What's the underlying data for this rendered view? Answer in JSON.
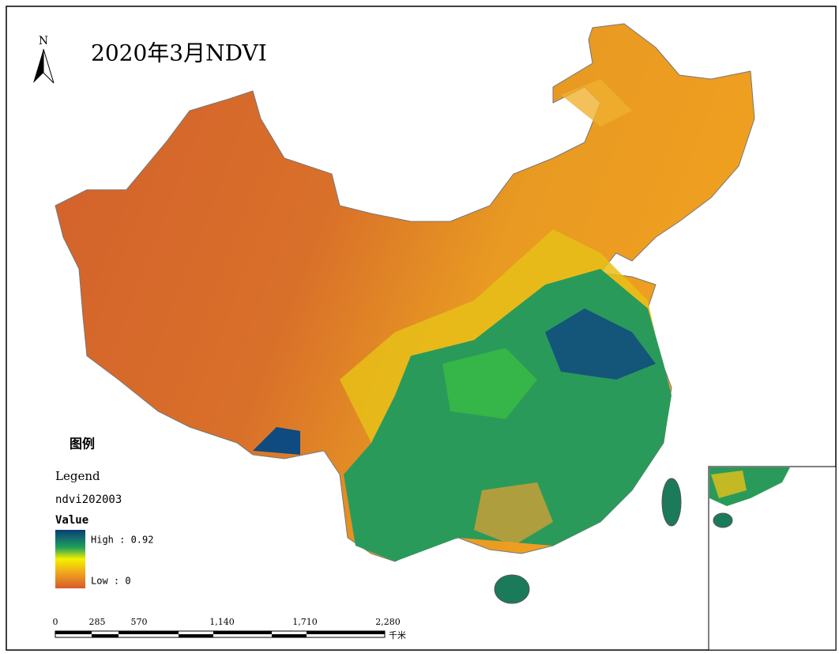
{
  "map": {
    "title": "2020年3月NDVI",
    "north": "N",
    "legend": {
      "heading": "图例",
      "title": "Legend",
      "layer": "ndvi202003",
      "field": "Value",
      "high": "High : 0.92",
      "low": "Low : 0"
    },
    "scale_bar": {
      "ticks": [
        "0",
        "285",
        "570",
        "1,140",
        "1,710",
        "2,280"
      ],
      "unit": "千米"
    }
  }
}
